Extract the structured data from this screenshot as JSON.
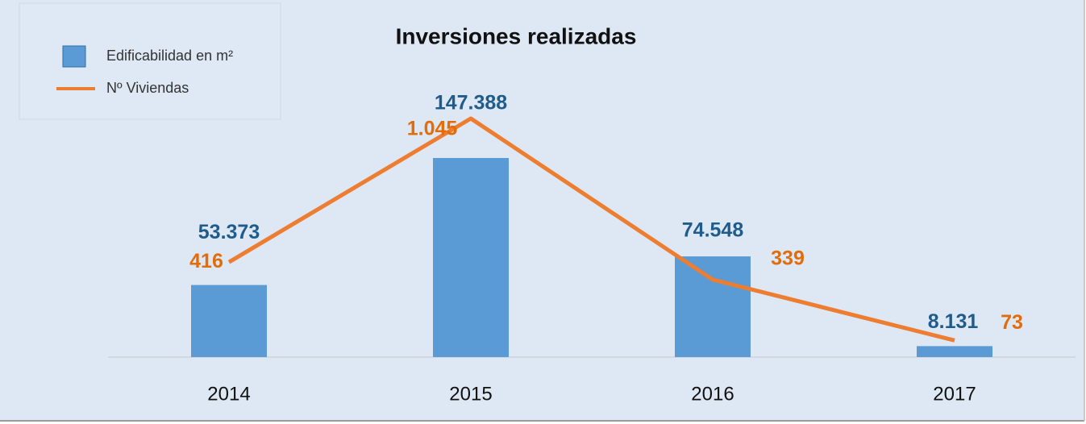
{
  "chart_data": {
    "type": "bar",
    "title": "Inversiones realizadas",
    "categories": [
      "2014",
      "2015",
      "2016",
      "2017"
    ],
    "series": [
      {
        "name": "Edificabilidad en m²",
        "type": "bar",
        "color": "#5b9bd5",
        "label_color": "#1f5c8b",
        "values": [
          53373,
          147388,
          74548,
          8131
        ],
        "value_labels": [
          "53.373",
          "147.388",
          "74.548",
          "8.131"
        ]
      },
      {
        "name": "Nº Viviendas",
        "type": "line",
        "axis": "y2",
        "color": "#ed7d31",
        "label_color": "#e36c0a",
        "values": [
          416,
          1045,
          339,
          73
        ],
        "value_labels": [
          "416",
          "1.045",
          "339",
          "73"
        ]
      }
    ],
    "legend": "top-left"
  }
}
